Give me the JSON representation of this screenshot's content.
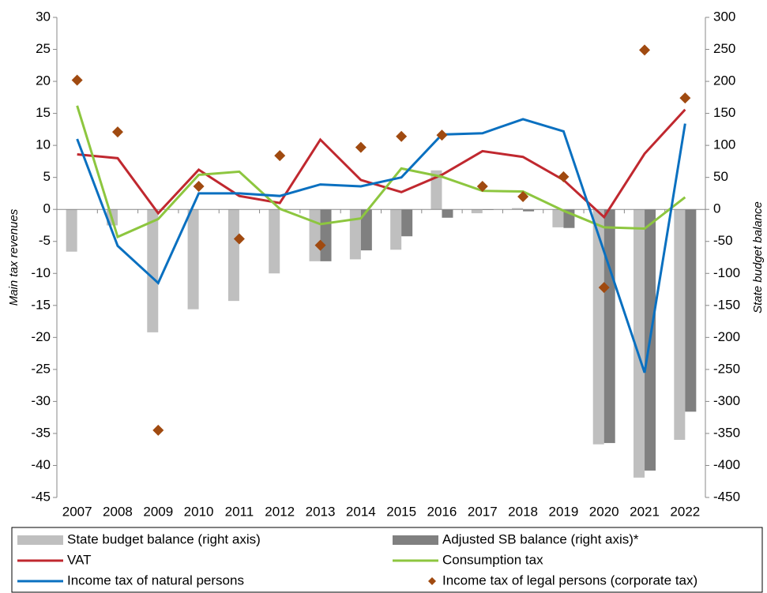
{
  "chart_data": {
    "type": "combo",
    "ylabel": "Main tax revenues",
    "y2label": "State budget balance",
    "categories": [
      "2007",
      "2008",
      "2009",
      "2010",
      "2011",
      "2012",
      "2013",
      "2014",
      "2015",
      "2016",
      "2017",
      "2018",
      "2019",
      "2020",
      "2021",
      "2022"
    ],
    "ylim": [
      -45,
      30
    ],
    "yticks": [
      -45,
      -40,
      -35,
      -30,
      -25,
      -20,
      -15,
      -10,
      -5,
      0,
      5,
      10,
      15,
      20,
      25,
      30
    ],
    "y2lim": [
      -450,
      300
    ],
    "y2ticks": [
      -450,
      -400,
      -350,
      -300,
      -250,
      -200,
      -150,
      -100,
      -50,
      0,
      50,
      100,
      150,
      200,
      250,
      300
    ],
    "series": [
      {
        "name": "State budget balance (right axis)",
        "kind": "bar",
        "axis": "y2",
        "color": "#bfbfbf",
        "values": [
          -66,
          -25,
          -192,
          -156,
          -143,
          -100,
          -81,
          -78,
          -63,
          61,
          -6,
          2,
          -28,
          -367,
          -419,
          -360
        ]
      },
      {
        "name": "Adjusted SB balance (right axis)*",
        "kind": "bar",
        "axis": "y2",
        "color": "#808080",
        "values": [
          null,
          null,
          null,
          null,
          null,
          null,
          -81,
          -64,
          -42,
          -13,
          -1,
          -3,
          -29,
          -365,
          -408,
          -316
        ]
      },
      {
        "name": "VAT",
        "kind": "line",
        "color": "#c0282f",
        "values": [
          8.6,
          8.0,
          -0.6,
          6.2,
          2.1,
          1.0,
          10.9,
          4.6,
          2.7,
          5.4,
          9.1,
          8.2,
          4.6,
          -1.2,
          8.7,
          15.6
        ]
      },
      {
        "name": "Consumption tax",
        "kind": "line",
        "color": "#8dc63f",
        "values": [
          16.2,
          -4.3,
          -1.5,
          5.4,
          5.9,
          0.1,
          -2.3,
          -1.4,
          6.4,
          5.1,
          2.9,
          2.8,
          -0.2,
          -2.8,
          -3.0,
          1.9
        ]
      },
      {
        "name": "Income tax of natural persons",
        "kind": "line",
        "color": "#0a70c0",
        "values": [
          11.0,
          -5.7,
          -11.5,
          2.5,
          2.5,
          2.1,
          3.9,
          3.6,
          5.0,
          11.7,
          11.9,
          14.1,
          12.2,
          -6.6,
          -25.5,
          13.4
        ]
      },
      {
        "name": "Income tax of legal persons (corporate tax)",
        "kind": "scatter",
        "color": "#a04a10",
        "values": [
          20.2,
          12.1,
          -34.5,
          3.6,
          -4.6,
          8.4,
          -5.6,
          9.7,
          11.4,
          11.6,
          3.6,
          2.0,
          5.1,
          -12.2,
          24.9,
          17.4
        ]
      }
    ]
  }
}
